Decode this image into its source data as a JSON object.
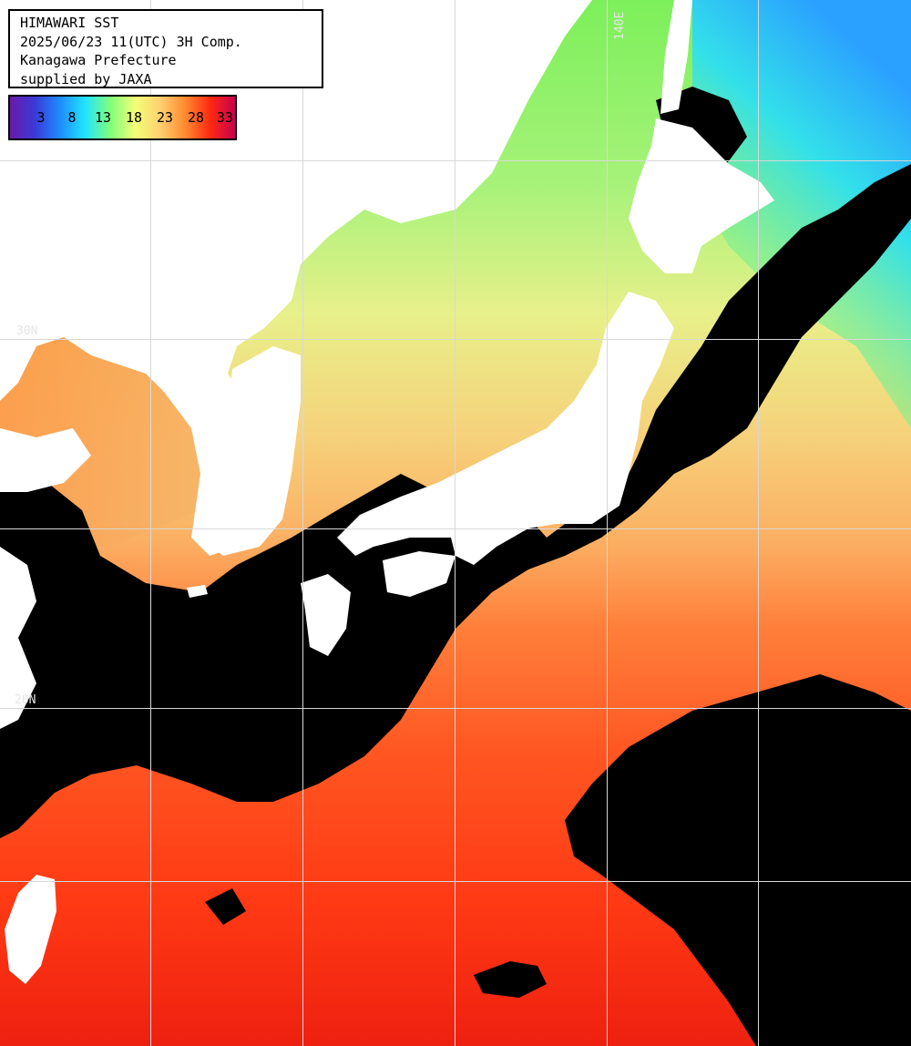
{
  "header": {
    "title": "HIMAWARI SST",
    "datetime": "2025/06/23 11(UTC) 3H Comp.",
    "region": "Kanagawa Prefecture",
    "credit": "supplied by JAXA"
  },
  "legend": {
    "ticks": [
      "3",
      "8",
      "13",
      "18",
      "23",
      "28",
      "33"
    ],
    "colors": [
      "#6a1aa8",
      "#3a3ad8",
      "#1f8cff",
      "#22e3ff",
      "#7fff7a",
      "#f2ff78",
      "#ffd070",
      "#ff8a30",
      "#ff2a10",
      "#c80050"
    ]
  },
  "grid": {
    "labels": [
      "30N",
      "20N",
      "140E"
    ]
  },
  "colors": {
    "land": "#ffffff",
    "cloud": "#000000",
    "grid": "#d8d8d8"
  }
}
